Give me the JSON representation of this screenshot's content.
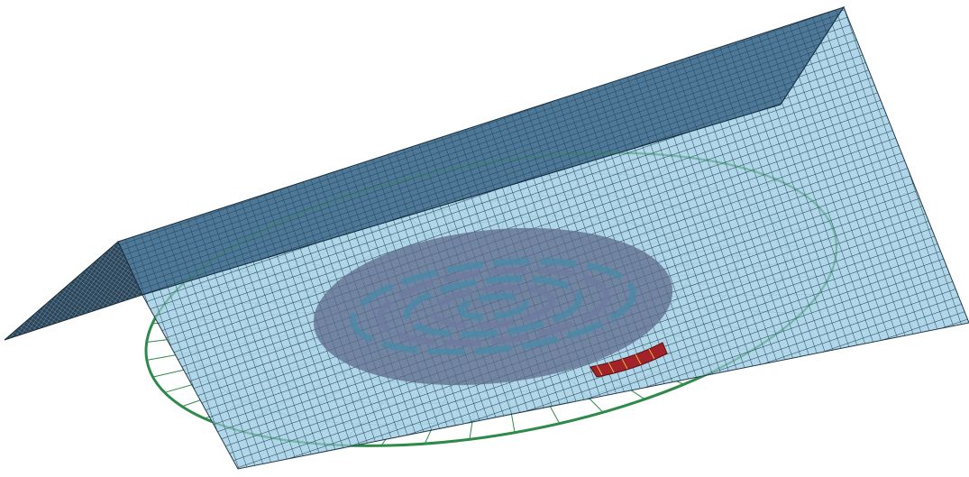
{
  "scene": {
    "type": "fem-mesh-render",
    "background_color": "#ffffff",
    "components": [
      {
        "name": "tilted-sheet-mesh",
        "style": "shaded-quad-mesh",
        "color_light": "#a9d3e8",
        "color_dark": "#3a5a72",
        "edge_color": "#102030"
      },
      {
        "name": "ridge-flange",
        "style": "shaded-quad-mesh",
        "color": "#4a7390"
      },
      {
        "name": "circular-plate",
        "style": "wireframe",
        "color": "#2f8a4a"
      },
      {
        "name": "circular-impression",
        "style": "shaded-region",
        "color": "#5d6a8a"
      },
      {
        "name": "contact-part",
        "style": "solid",
        "color": "#a3222a"
      }
    ]
  }
}
